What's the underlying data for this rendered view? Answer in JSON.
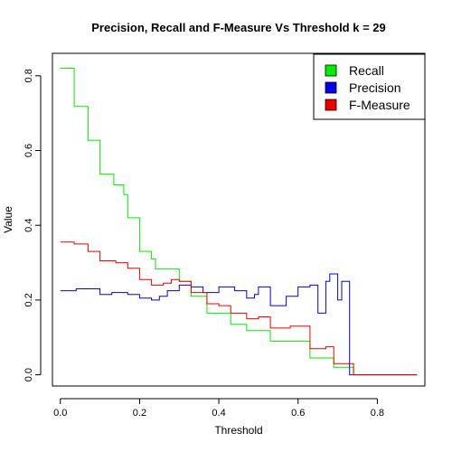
{
  "chart_data": {
    "type": "line",
    "title": "Precision, Recall and F-Measure Vs Threshold k = 29",
    "xlabel": "Threshold",
    "ylabel": "Value",
    "xlim": [
      -0.02,
      0.92
    ],
    "ylim": [
      -0.03,
      0.86
    ],
    "x_ticks": [
      0.0,
      0.2,
      0.4,
      0.6,
      0.8
    ],
    "x_tick_labels": [
      "0.0",
      "0.2",
      "0.4",
      "0.6",
      "0.8"
    ],
    "y_ticks": [
      0.0,
      0.2,
      0.4,
      0.6,
      0.8
    ],
    "y_tick_labels": [
      "0.0",
      "0.2",
      "0.4",
      "0.6",
      "0.8"
    ],
    "grid": false,
    "legend_position": "top-right",
    "legend": [
      {
        "label": "Recall",
        "color": "#00ee00"
      },
      {
        "label": "Precision",
        "color": "#0000ee"
      },
      {
        "label": "F-Measure",
        "color": "#ee0000"
      }
    ],
    "series": [
      {
        "name": "Recall",
        "color": "#00ee00",
        "step": true,
        "points": [
          [
            0.0,
            0.82
          ],
          [
            0.035,
            0.718
          ],
          [
            0.07,
            0.627
          ],
          [
            0.1,
            0.537
          ],
          [
            0.135,
            0.508
          ],
          [
            0.16,
            0.482
          ],
          [
            0.17,
            0.42
          ],
          [
            0.2,
            0.33
          ],
          [
            0.23,
            0.31
          ],
          [
            0.24,
            0.283
          ],
          [
            0.3,
            0.25
          ],
          [
            0.33,
            0.21
          ],
          [
            0.37,
            0.165
          ],
          [
            0.43,
            0.135
          ],
          [
            0.47,
            0.118
          ],
          [
            0.53,
            0.09
          ],
          [
            0.63,
            0.045
          ],
          [
            0.69,
            0.02
          ],
          [
            0.74,
            0.0
          ],
          [
            0.9,
            0.0
          ]
        ]
      },
      {
        "name": "Precision",
        "color": "#0000ee",
        "step": true,
        "points": [
          [
            0.0,
            0.225
          ],
          [
            0.04,
            0.23
          ],
          [
            0.1,
            0.215
          ],
          [
            0.13,
            0.22
          ],
          [
            0.17,
            0.215
          ],
          [
            0.2,
            0.205
          ],
          [
            0.23,
            0.2
          ],
          [
            0.25,
            0.21
          ],
          [
            0.27,
            0.225
          ],
          [
            0.3,
            0.24
          ],
          [
            0.33,
            0.235
          ],
          [
            0.36,
            0.22
          ],
          [
            0.4,
            0.235
          ],
          [
            0.44,
            0.225
          ],
          [
            0.47,
            0.205
          ],
          [
            0.49,
            0.215
          ],
          [
            0.5,
            0.235
          ],
          [
            0.53,
            0.185
          ],
          [
            0.56,
            0.185
          ],
          [
            0.57,
            0.21
          ],
          [
            0.6,
            0.235
          ],
          [
            0.63,
            0.24
          ],
          [
            0.65,
            0.165
          ],
          [
            0.67,
            0.25
          ],
          [
            0.68,
            0.27
          ],
          [
            0.7,
            0.2
          ],
          [
            0.71,
            0.25
          ],
          [
            0.73,
            0.0
          ],
          [
            0.9,
            0.0
          ]
        ]
      },
      {
        "name": "F-Measure",
        "color": "#ee0000",
        "step": true,
        "points": [
          [
            0.0,
            0.355
          ],
          [
            0.035,
            0.35
          ],
          [
            0.07,
            0.33
          ],
          [
            0.1,
            0.305
          ],
          [
            0.14,
            0.3
          ],
          [
            0.17,
            0.285
          ],
          [
            0.2,
            0.255
          ],
          [
            0.23,
            0.24
          ],
          [
            0.26,
            0.245
          ],
          [
            0.28,
            0.255
          ],
          [
            0.3,
            0.25
          ],
          [
            0.33,
            0.22
          ],
          [
            0.37,
            0.19
          ],
          [
            0.4,
            0.185
          ],
          [
            0.43,
            0.165
          ],
          [
            0.47,
            0.15
          ],
          [
            0.5,
            0.155
          ],
          [
            0.53,
            0.125
          ],
          [
            0.58,
            0.13
          ],
          [
            0.63,
            0.07
          ],
          [
            0.67,
            0.075
          ],
          [
            0.69,
            0.03
          ],
          [
            0.74,
            0.0
          ],
          [
            0.9,
            0.0
          ]
        ]
      }
    ]
  }
}
